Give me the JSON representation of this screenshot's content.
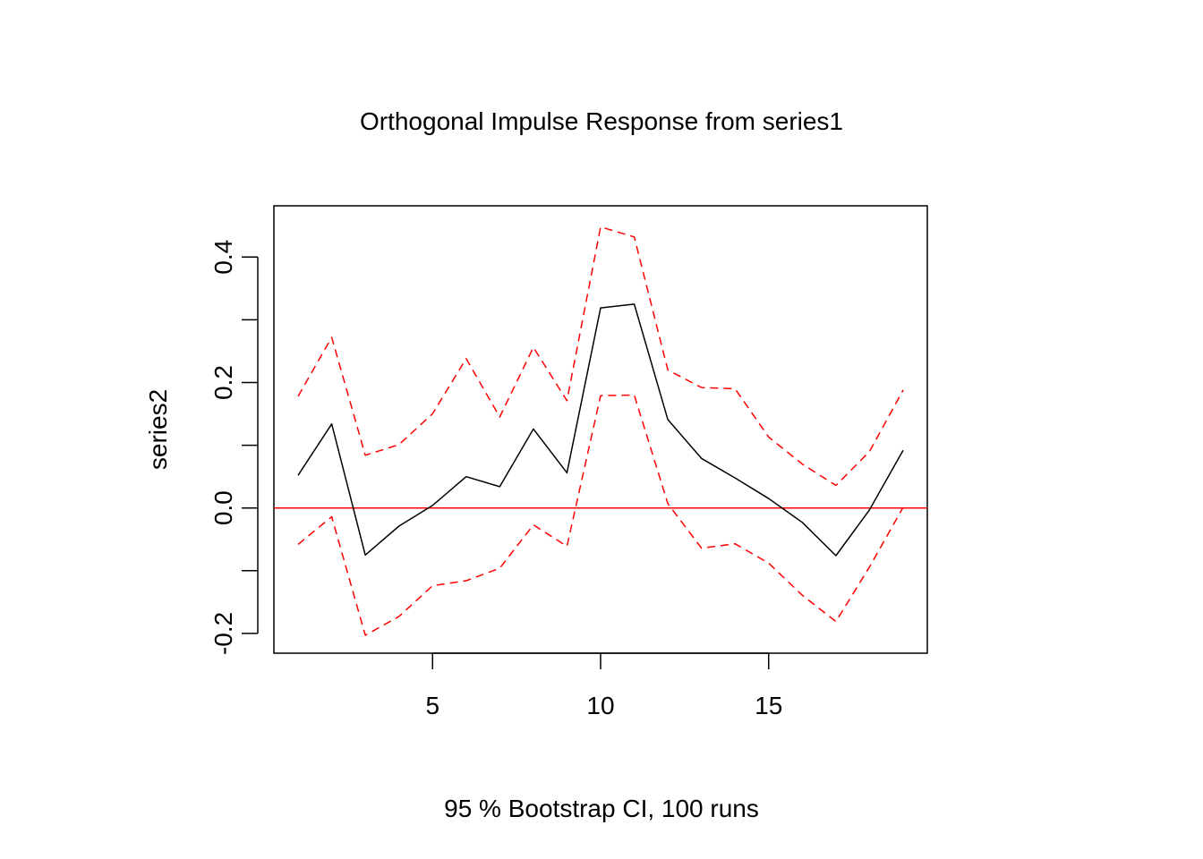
{
  "chart_data": {
    "type": "line",
    "title": "Orthogonal Impulse Response from series1",
    "xlabel": "95 % Bootstrap CI,  100 runs",
    "ylabel": "series2",
    "xlim": [
      0.28,
      19.72
    ],
    "ylim": [
      -0.2315,
      0.4817
    ],
    "x_ticks": [
      5,
      10,
      15
    ],
    "y_ticks": [
      -0.2,
      -0.1,
      0.0,
      0.1,
      0.2,
      0.3,
      0.4
    ],
    "y_tick_labels": [
      "-0.2",
      "0.0",
      "0.2",
      "0.4"
    ],
    "x": [
      1,
      2,
      3,
      4,
      5,
      6,
      7,
      8,
      9,
      10,
      11,
      12,
      13,
      14,
      15,
      16,
      17,
      18,
      19
    ],
    "series": [
      {
        "role": "response",
        "color": "#000000",
        "dash": "solid",
        "values": [
          0.052,
          0.134,
          -0.075,
          -0.029,
          0.004,
          0.05,
          0.034,
          0.126,
          0.056,
          0.319,
          0.325,
          0.141,
          0.079,
          0.048,
          0.015,
          -0.023,
          -0.076,
          -0.003,
          0.092
        ]
      },
      {
        "role": "upper",
        "color": "#ff0000",
        "dash": "dashed",
        "values": [
          0.178,
          0.272,
          0.084,
          0.101,
          0.15,
          0.238,
          0.145,
          0.256,
          0.171,
          0.448,
          0.432,
          0.22,
          0.192,
          0.19,
          0.113,
          0.07,
          0.036,
          0.09,
          0.188
        ]
      },
      {
        "role": "lower",
        "color": "#ff0000",
        "dash": "dashed",
        "values": [
          -0.058,
          -0.014,
          -0.203,
          -0.173,
          -0.124,
          -0.116,
          -0.096,
          -0.027,
          -0.061,
          0.179,
          0.18,
          0.007,
          -0.064,
          -0.057,
          -0.088,
          -0.139,
          -0.181,
          -0.094,
          0.001
        ]
      }
    ],
    "hline": {
      "y": 0.0,
      "color": "#ff0000"
    },
    "grid": false,
    "legend": "none"
  }
}
